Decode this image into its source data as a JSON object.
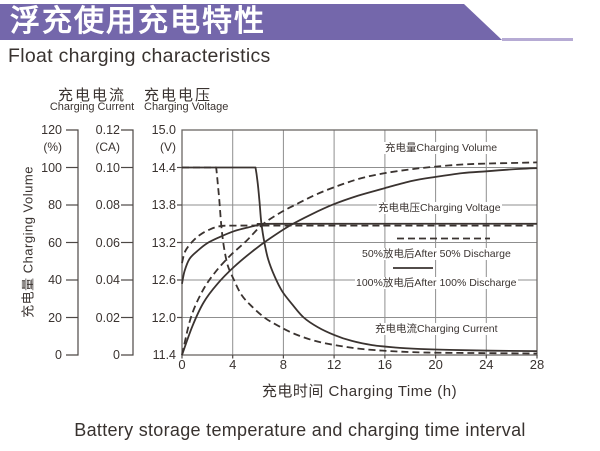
{
  "header": {
    "title_cn": "浮充使用充电特性",
    "title_en": "Float charging characteristics",
    "banner_color": "#7467ab",
    "underline_color": "#b6abd4"
  },
  "caption": "Battery storage temperature and charging time interval",
  "axes": {
    "volume": {
      "side_label": "充电量 Charging Volume",
      "unit": "(%)",
      "ticks": [
        "120",
        "100",
        "80",
        "60",
        "40",
        "20",
        "0"
      ]
    },
    "current": {
      "header_cn": "充电电流",
      "header_en": "Charging Current",
      "unit": "(CA)",
      "ticks": [
        "0.12",
        "0.10",
        "0.08",
        "0.06",
        "0.04",
        "0.02",
        "0"
      ]
    },
    "voltage": {
      "header_cn": "充电电压",
      "header_en": "Charging Voltage",
      "unit": "(V)",
      "ticks": [
        "15.0",
        "14.4",
        "13.8",
        "13.2",
        "12.6",
        "12.0",
        "11.4"
      ]
    },
    "time": {
      "label": "充电时间 Charging Time (h)",
      "ticks": [
        "0",
        "4",
        "8",
        "12",
        "16",
        "20",
        "24",
        "28"
      ]
    }
  },
  "plot_labels": {
    "charging_volume": "充电量Charging Volume",
    "charging_voltage": "充电电压Charging Voltage",
    "after_50_discharge": "50%放电后After 50% Discharge",
    "after_100_discharge": "100%放电后After 100% Discharge",
    "charging_current": "充电电流Charging Current"
  },
  "chart_data": {
    "type": "line",
    "xlabel": "充电时间 Charging Time (h)",
    "x_range_hours": [
      0,
      28
    ],
    "grid": true,
    "axes_ranges": {
      "charging_volume_percent": [
        0,
        120
      ],
      "charging_current_CA": [
        0,
        0.12
      ],
      "charging_voltage_V": [
        11.4,
        15.0
      ]
    },
    "legend": [
      {
        "style": "dashed",
        "label": "50%放电后After 50% Discharge"
      },
      {
        "style": "solid",
        "label": "100%放电后After 100% Discharge"
      }
    ],
    "series": [
      {
        "id": "volume-50",
        "label": "充电量Charging Volume",
        "condition": "After 50% Discharge",
        "style": "dashed",
        "axis": "volume",
        "x": [
          0,
          0.7,
          1.6,
          2.6,
          3.8,
          5.1,
          6.3,
          7.7,
          9.2,
          10.7,
          12.5,
          14.2,
          16,
          18,
          20,
          22.1,
          24,
          26,
          28
        ],
        "y": [
          0,
          20,
          34,
          44,
          53,
          61,
          69.3,
          75.7,
          81,
          86,
          90.7,
          94.4,
          97,
          99,
          100.5,
          101.6,
          102.1,
          102.4,
          102.7
        ]
      },
      {
        "id": "volume-100",
        "label": "充电量Charging Volume",
        "condition": "After 100% Discharge",
        "style": "solid",
        "axis": "volume",
        "x": [
          0,
          0.8,
          1.7,
          2.8,
          4.1,
          5.5,
          6.9,
          8.5,
          10.2,
          12,
          13.9,
          16,
          18.1,
          20,
          22.1,
          24,
          26,
          28
        ],
        "y": [
          0,
          15,
          28,
          38,
          47,
          55,
          62,
          69,
          75,
          80.5,
          85,
          89,
          92.8,
          95,
          97,
          98,
          99,
          99.7
        ]
      },
      {
        "id": "voltage-50",
        "label": "充电电压Charging Voltage",
        "condition": "After 50% Discharge",
        "style": "dashed",
        "axis": "voltage",
        "x": [
          0,
          0.25,
          0.8,
          1.4,
          2.2,
          3,
          4.2,
          10,
          28
        ],
        "y": [
          12.87,
          13.06,
          13.21,
          13.32,
          13.41,
          13.46,
          13.47,
          13.47,
          13.47
        ]
      },
      {
        "id": "voltage-100",
        "label": "充电电压Charging Voltage",
        "condition": "After 100% Discharge",
        "style": "solid",
        "axis": "voltage",
        "x": [
          0,
          0.2,
          0.6,
          1.3,
          2,
          3,
          4.1,
          5.2,
          6.3,
          8,
          28
        ],
        "y": [
          12.54,
          12.74,
          12.94,
          13.08,
          13.19,
          13.29,
          13.38,
          13.44,
          13.49,
          13.5,
          13.5
        ]
      },
      {
        "id": "current-50",
        "label": "充电电流Charging Current",
        "condition": "After 50% Discharge",
        "style": "dashed",
        "axis": "current",
        "sharp_until": 2.7,
        "x": [
          0,
          2.7,
          2.8,
          2.95,
          3.1,
          3.3,
          3.6,
          4.1,
          4.7,
          5.5,
          6.5,
          7.6,
          8.9,
          10.5,
          12.3,
          14.2,
          16.4,
          18.8,
          21.9,
          28
        ],
        "y": [
          0.1,
          0.1,
          0.093,
          0.082,
          0.069,
          0.058,
          0.048,
          0.04,
          0.032,
          0.026,
          0.02,
          0.0155,
          0.0112,
          0.0075,
          0.005,
          0.0032,
          0.0021,
          0.0014,
          0.0011,
          0.0008
        ]
      },
      {
        "id": "current-100",
        "label": "充电电流Charging Current",
        "condition": "After 100% Discharge",
        "style": "solid",
        "axis": "current",
        "sharp_until": 5.8,
        "x": [
          0,
          5.8,
          5.95,
          6.1,
          6.25,
          6.5,
          6.8,
          7.3,
          7.9,
          8.7,
          9.6,
          10.7,
          12,
          13.4,
          15,
          16.8,
          18.8,
          21.1,
          24.3,
          28
        ],
        "y": [
          0.1,
          0.1,
          0.093,
          0.083,
          0.071,
          0.06,
          0.051,
          0.042,
          0.034,
          0.027,
          0.02,
          0.0149,
          0.0107,
          0.0075,
          0.0053,
          0.004,
          0.0032,
          0.0027,
          0.0023,
          0.0021
        ]
      }
    ]
  }
}
